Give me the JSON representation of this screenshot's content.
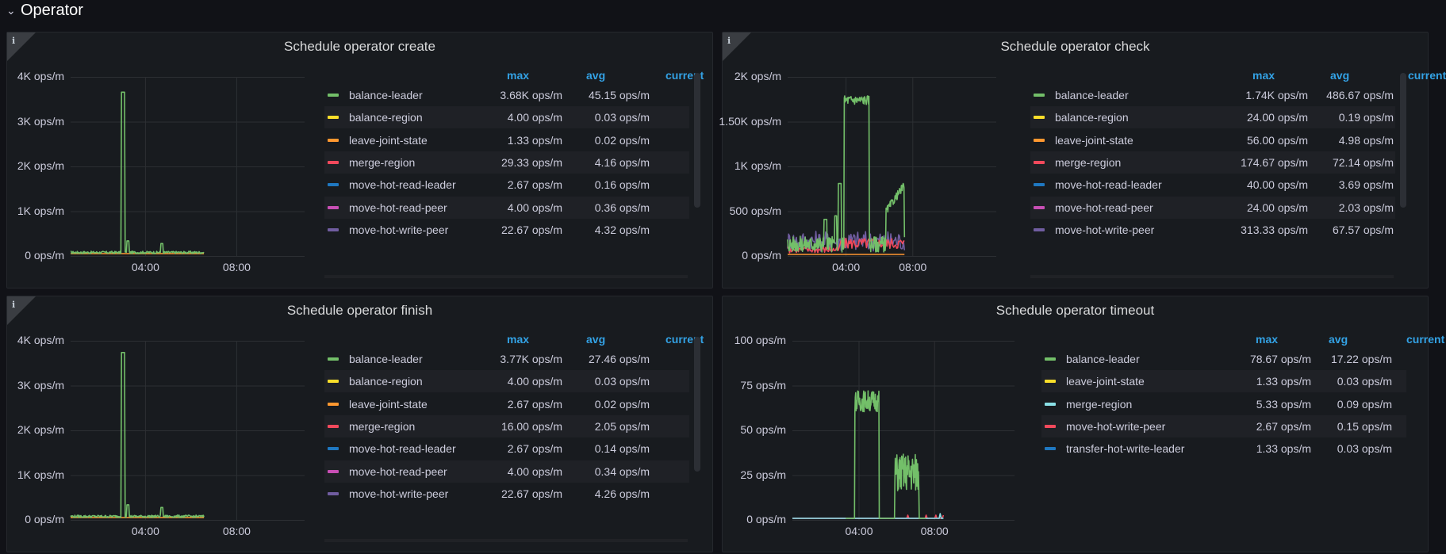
{
  "row": {
    "title": "Operator"
  },
  "legend_headers": {
    "max": "max",
    "avg": "avg",
    "current": "current"
  },
  "colors": {
    "balance-leader": "#73bf69",
    "balance-region": "#fade2a",
    "leave-joint-state": "#ff9830",
    "merge-region": "#f2495c",
    "move-hot-read-leader": "#1f78c1",
    "move-hot-read-peer": "#c84fb5",
    "move-hot-write-peer": "#705da0",
    "merge-region-timeout": "#8ae0e6",
    "transfer-hot-write-leader": "#1f78c1"
  },
  "panels": [
    {
      "title": "Schedule operator create",
      "yticks": [
        "4K ops/m",
        "3K ops/m",
        "2K ops/m",
        "1K ops/m",
        "0 ops/m"
      ],
      "xticks": [
        "04:00",
        "08:00"
      ],
      "legend": [
        {
          "name": "balance-leader",
          "max": "3.68K ops/m",
          "avg": "45.15 ops/m",
          "color": "#73bf69"
        },
        {
          "name": "balance-region",
          "max": "4.00 ops/m",
          "avg": "0.03 ops/m",
          "color": "#fade2a"
        },
        {
          "name": "leave-joint-state",
          "max": "1.33 ops/m",
          "avg": "0.02 ops/m",
          "color": "#ff9830"
        },
        {
          "name": "merge-region",
          "max": "29.33 ops/m",
          "avg": "4.16 ops/m",
          "color": "#f2495c"
        },
        {
          "name": "move-hot-read-leader",
          "max": "2.67 ops/m",
          "avg": "0.16 ops/m",
          "color": "#1f78c1"
        },
        {
          "name": "move-hot-read-peer",
          "max": "4.00 ops/m",
          "avg": "0.36 ops/m",
          "color": "#c84fb5"
        },
        {
          "name": "move-hot-write-peer",
          "max": "22.67 ops/m",
          "avg": "4.32 ops/m",
          "color": "#705da0"
        }
      ]
    },
    {
      "title": "Schedule operator check",
      "yticks": [
        "2K ops/m",
        "1.50K ops/m",
        "1K ops/m",
        "500 ops/m",
        "0 ops/m"
      ],
      "xticks": [
        "04:00",
        "08:00"
      ],
      "legend": [
        {
          "name": "balance-leader",
          "max": "1.74K ops/m",
          "avg": "486.67 ops/m",
          "color": "#73bf69"
        },
        {
          "name": "balance-region",
          "max": "24.00 ops/m",
          "avg": "0.19 ops/m",
          "color": "#fade2a"
        },
        {
          "name": "leave-joint-state",
          "max": "56.00 ops/m",
          "avg": "4.98 ops/m",
          "color": "#ff9830"
        },
        {
          "name": "merge-region",
          "max": "174.67 ops/m",
          "avg": "72.14 ops/m",
          "color": "#f2495c"
        },
        {
          "name": "move-hot-read-leader",
          "max": "40.00 ops/m",
          "avg": "3.69 ops/m",
          "color": "#1f78c1"
        },
        {
          "name": "move-hot-read-peer",
          "max": "24.00 ops/m",
          "avg": "2.03 ops/m",
          "color": "#c84fb5"
        },
        {
          "name": "move-hot-write-peer",
          "max": "313.33 ops/m",
          "avg": "67.57 ops/m",
          "color": "#705da0"
        }
      ]
    },
    {
      "title": "Schedule operator finish",
      "yticks": [
        "4K ops/m",
        "3K ops/m",
        "2K ops/m",
        "1K ops/m",
        "0 ops/m"
      ],
      "xticks": [
        "04:00",
        "08:00"
      ],
      "legend": [
        {
          "name": "balance-leader",
          "max": "3.77K ops/m",
          "avg": "27.46 ops/m",
          "color": "#73bf69"
        },
        {
          "name": "balance-region",
          "max": "4.00 ops/m",
          "avg": "0.03 ops/m",
          "color": "#fade2a"
        },
        {
          "name": "leave-joint-state",
          "max": "2.67 ops/m",
          "avg": "0.02 ops/m",
          "color": "#ff9830"
        },
        {
          "name": "merge-region",
          "max": "16.00 ops/m",
          "avg": "2.05 ops/m",
          "color": "#f2495c"
        },
        {
          "name": "move-hot-read-leader",
          "max": "2.67 ops/m",
          "avg": "0.14 ops/m",
          "color": "#1f78c1"
        },
        {
          "name": "move-hot-read-peer",
          "max": "4.00 ops/m",
          "avg": "0.34 ops/m",
          "color": "#c84fb5"
        },
        {
          "name": "move-hot-write-peer",
          "max": "22.67 ops/m",
          "avg": "4.26 ops/m",
          "color": "#705da0"
        }
      ]
    },
    {
      "title": "Schedule operator timeout",
      "yticks": [
        "100 ops/m",
        "75 ops/m",
        "50 ops/m",
        "25 ops/m",
        "0 ops/m"
      ],
      "xticks": [
        "04:00",
        "08:00"
      ],
      "legend": [
        {
          "name": "balance-leader",
          "max": "78.67 ops/m",
          "avg": "17.22 ops/m",
          "color": "#73bf69"
        },
        {
          "name": "leave-joint-state",
          "max": "1.33 ops/m",
          "avg": "0.03 ops/m",
          "color": "#fade2a"
        },
        {
          "name": "merge-region",
          "max": "5.33 ops/m",
          "avg": "0.09 ops/m",
          "color": "#8ae0e6"
        },
        {
          "name": "move-hot-write-peer",
          "max": "2.67 ops/m",
          "avg": "0.15 ops/m",
          "color": "#f2495c"
        },
        {
          "name": "transfer-hot-write-leader",
          "max": "1.33 ops/m",
          "avg": "0.03 ops/m",
          "color": "#1f78c1"
        }
      ]
    }
  ]
}
